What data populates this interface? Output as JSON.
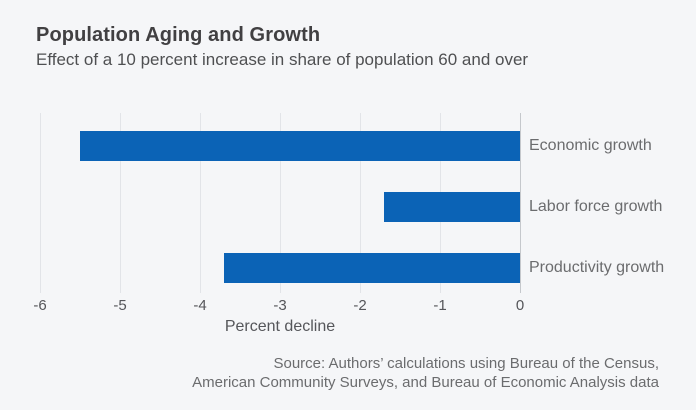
{
  "header": {
    "title": "Population Aging and Growth",
    "subtitle": "Effect of a 10 percent increase in share of population 60 and over"
  },
  "chart_data": {
    "type": "bar",
    "orientation": "horizontal",
    "title": "Population Aging and Growth",
    "subtitle": "Effect of a 10 percent increase in share of population 60 and over",
    "categories": [
      "Economic growth",
      "Labor force growth",
      "Productivity growth"
    ],
    "values": [
      -5.5,
      -1.7,
      -3.7
    ],
    "xlabel": "Percent decline",
    "ylabel": "",
    "xlim": [
      -6,
      0
    ],
    "xticks": [
      -6,
      -5,
      -4,
      -3,
      -2,
      -1,
      0
    ],
    "grid": "vertical-gridlines-on",
    "legend": "none",
    "bar_color": "#0b63b6",
    "background_color": "#f5f6f8"
  },
  "source": {
    "line1": "Source: Authors’ calculations using Bureau of the Census,",
    "line2": "American Community Surveys, and Bureau of Economic Analysis data"
  }
}
